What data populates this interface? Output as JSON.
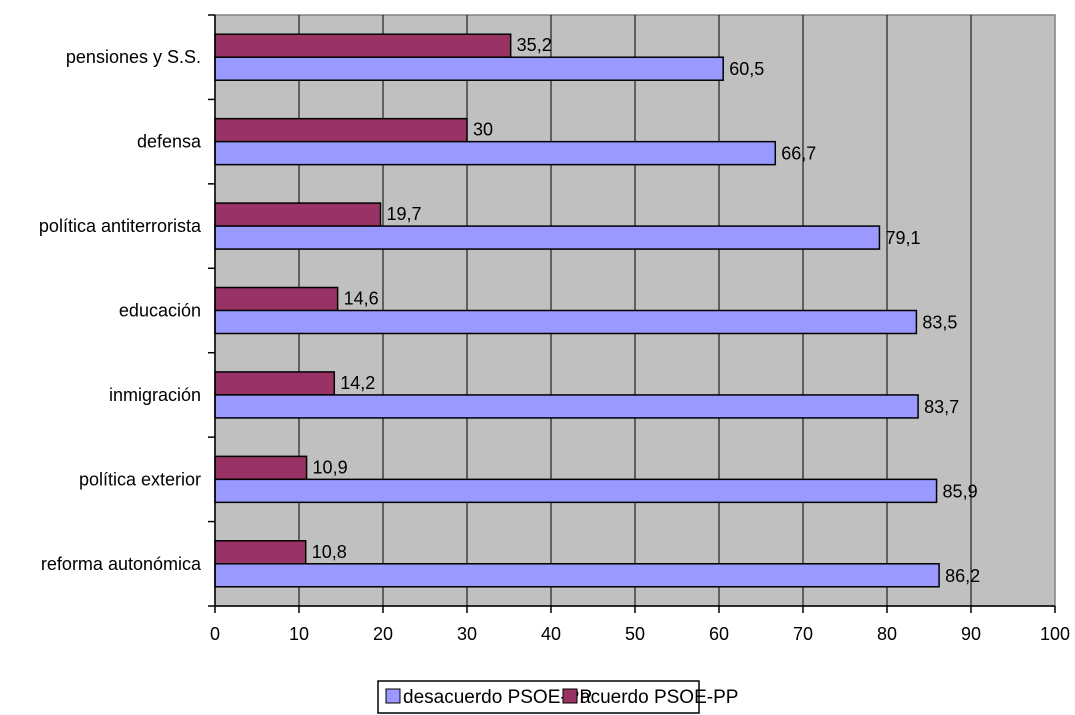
{
  "chart_data": {
    "type": "bar",
    "orientation": "horizontal",
    "categories": [
      "pensiones y S.S.",
      "defensa",
      "política antiterrorista",
      "educación",
      "inmigración",
      "política exterior",
      "reforma autonómica"
    ],
    "series": [
      {
        "name": "acuerdo PSOE-PP",
        "color": "#993366",
        "values": [
          35.2,
          30,
          19.7,
          14.6,
          14.2,
          10.9,
          10.8
        ],
        "labels": [
          "35,2",
          "30",
          "19,7",
          "14,6",
          "14,2",
          "10,9",
          "10,8"
        ]
      },
      {
        "name": "desacuerdo PSOE-PP",
        "color": "#9999ff",
        "values": [
          60.5,
          66.7,
          79.1,
          83.5,
          83.7,
          85.9,
          86.2
        ],
        "labels": [
          "60,5",
          "66,7",
          "79,1",
          "83,5",
          "83,7",
          "85,9",
          "86,2"
        ]
      }
    ],
    "xlim": [
      0,
      100
    ],
    "xticks": [
      "0",
      "10",
      "20",
      "30",
      "40",
      "50",
      "60",
      "70",
      "80",
      "90",
      "100"
    ],
    "grid": true,
    "plot_background": "#c0c0c0",
    "legend": {
      "position": "bottom",
      "entries": [
        "desacuerdo PSOE-PP",
        "acuerdo PSOE-PP"
      ]
    }
  }
}
